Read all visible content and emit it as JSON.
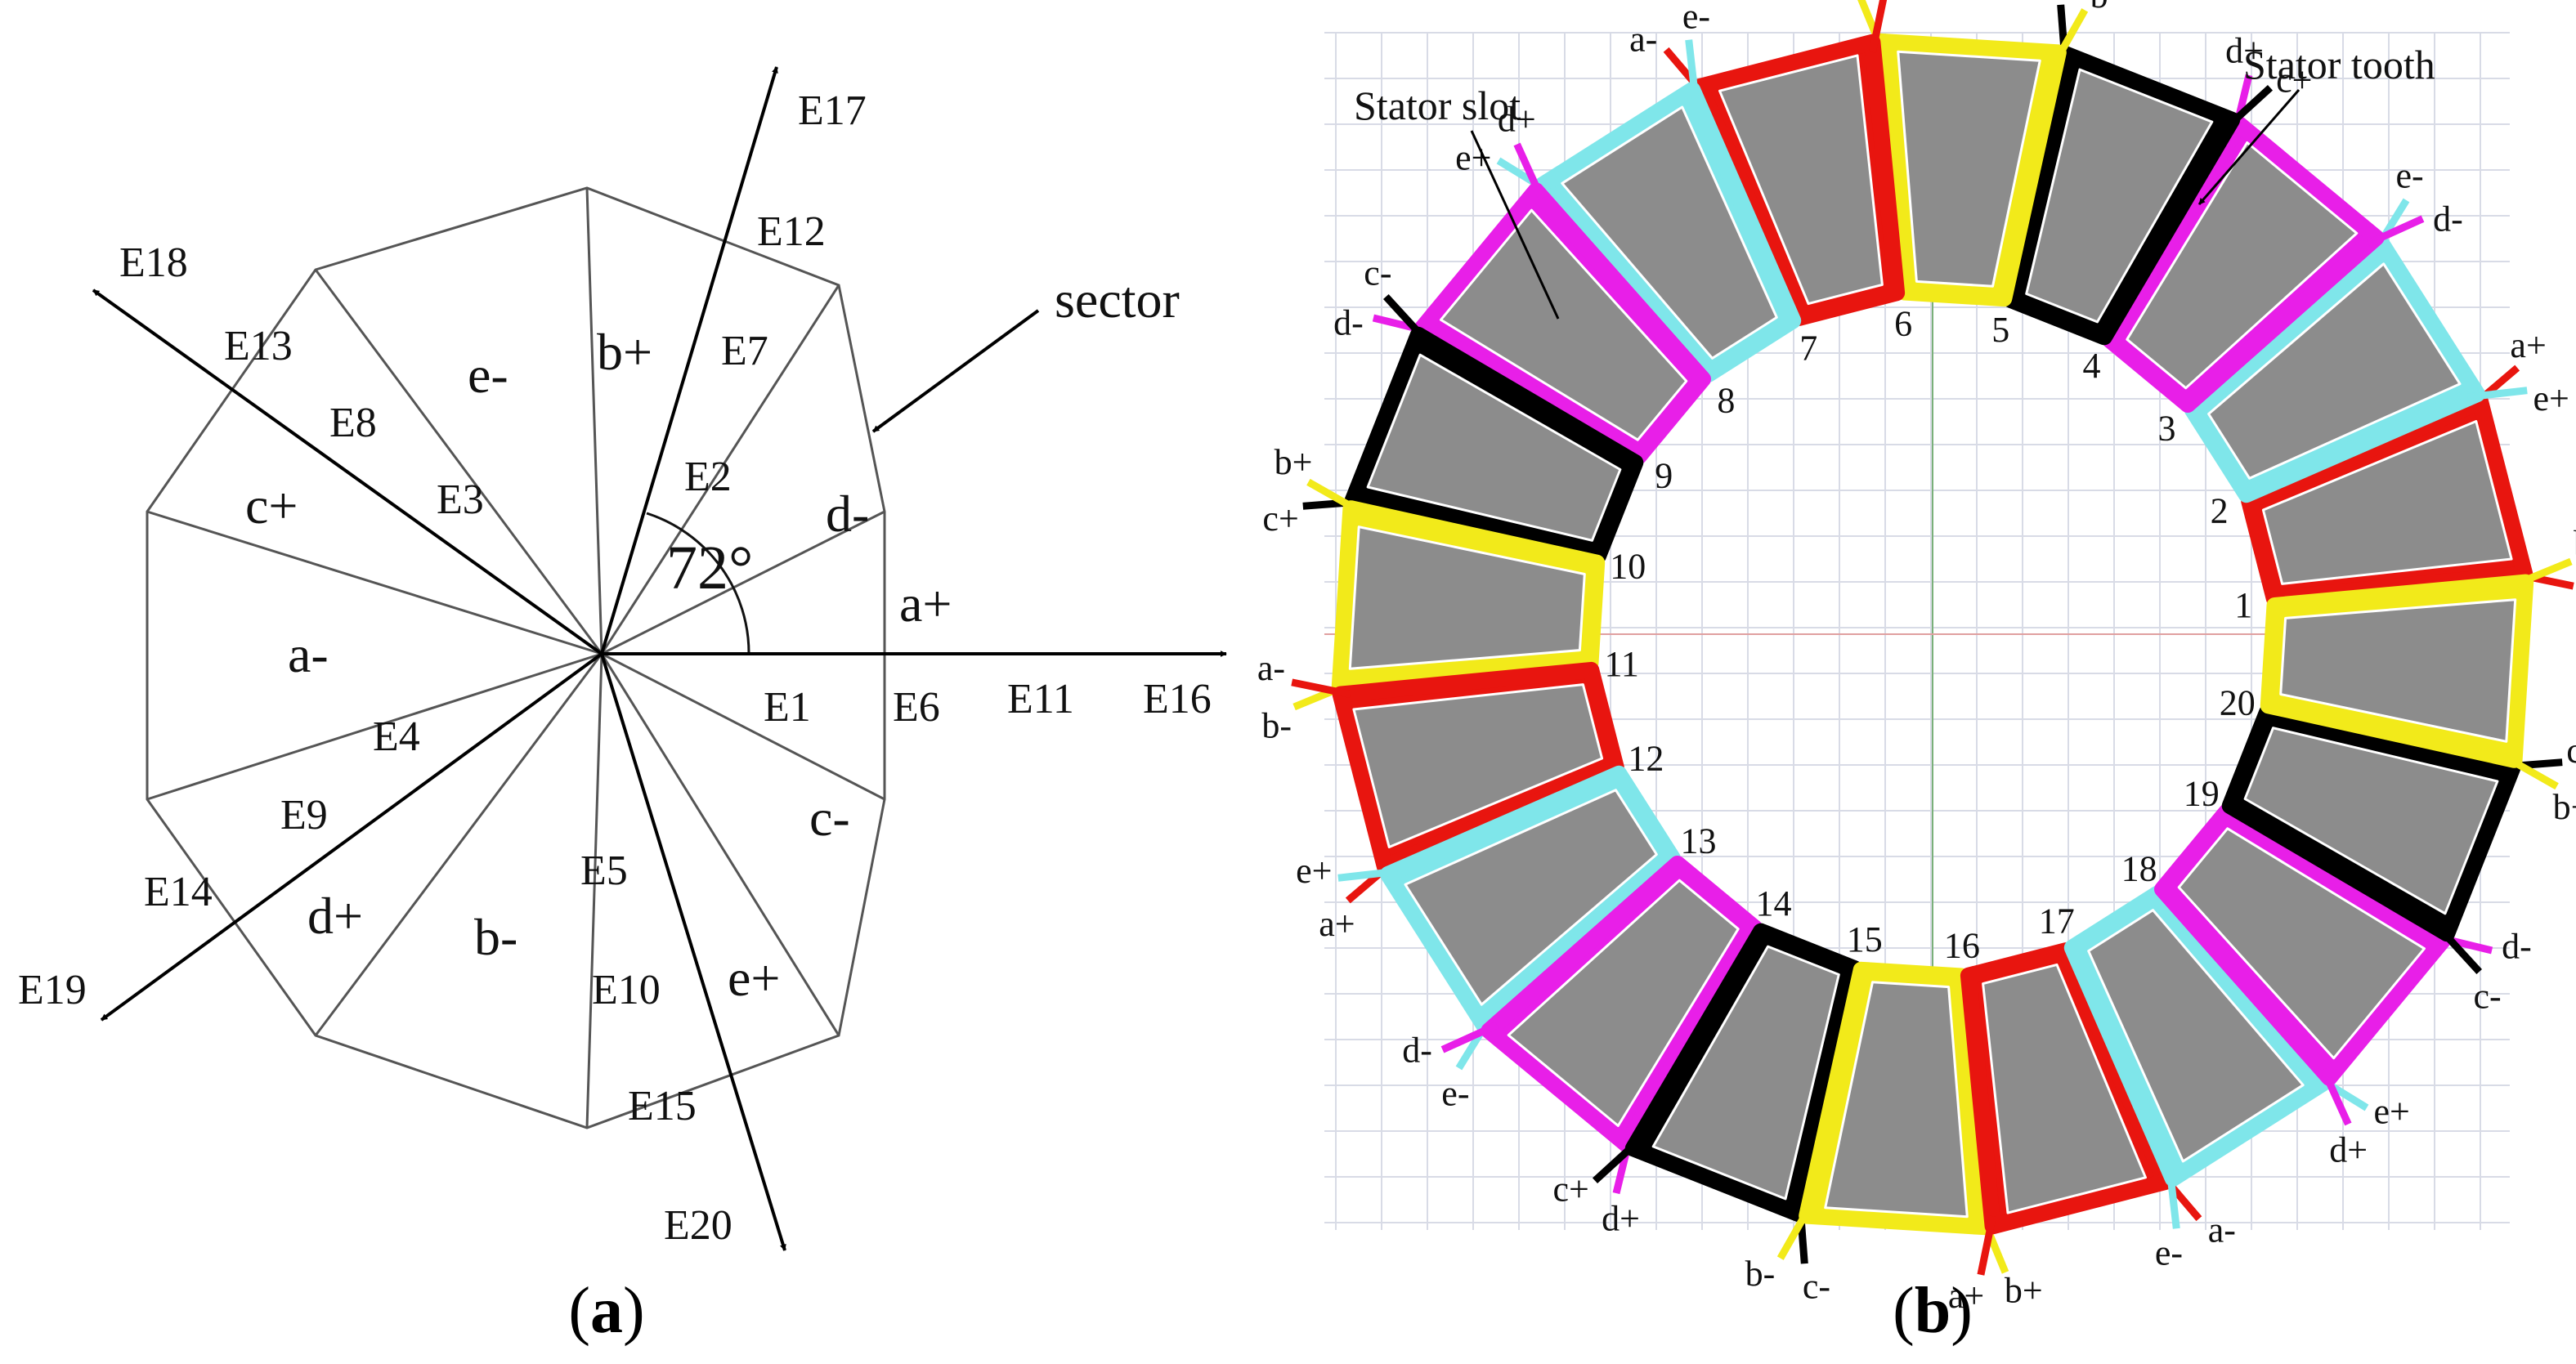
{
  "panel_a": {
    "caption": "a",
    "angle_label": "72°",
    "sector_label": "sector",
    "sector_phases": [
      "a+",
      "b+",
      "c+",
      "d-",
      "e-",
      "a-",
      "b-",
      "c-",
      "d+",
      "e+"
    ],
    "vectors": {
      "E16": [
        "E1",
        "E6",
        "E11",
        "E16"
      ],
      "E17": [
        "E2",
        "E7",
        "E12",
        "E17"
      ],
      "E18": [
        "E3",
        "E8",
        "E13",
        "E18"
      ],
      "E19": [
        "E4",
        "E9",
        "E14",
        "E19"
      ],
      "E20": [
        "E5",
        "E10",
        "E15",
        "E20"
      ]
    }
  },
  "panel_b": {
    "caption": "b",
    "annotations": {
      "stator_slot": "Stator slot",
      "stator_tooth": "Stator tooth"
    },
    "coil_colors": {
      "a": "#e8150f",
      "b": "#f2ea1a",
      "c": "#000000",
      "d": "#e81fe8",
      "e": "#7fe6ea"
    },
    "tooth_fill": "#8c8c8c",
    "slot_numbers": [
      "1",
      "2",
      "3",
      "4",
      "5",
      "6",
      "7",
      "8",
      "9",
      "10",
      "11",
      "12",
      "13",
      "14",
      "15",
      "16",
      "17",
      "18",
      "19",
      "20"
    ],
    "coils": [
      {
        "phase": "a",
        "lead1": "a-",
        "lead2": "a+"
      },
      {
        "phase": "e",
        "lead1": "e+",
        "lead2": "e-"
      },
      {
        "phase": "d",
        "lead1": "d-",
        "lead2": "d+"
      },
      {
        "phase": "c",
        "lead1": "c+",
        "lead2": "c-"
      },
      {
        "phase": "b",
        "lead1": "b-",
        "lead2": "b+"
      },
      {
        "phase": "a",
        "lead1": "a+",
        "lead2": "a-"
      },
      {
        "phase": "e",
        "lead1": "e-",
        "lead2": "e+"
      },
      {
        "phase": "d",
        "lead1": "d+",
        "lead2": "d-"
      },
      {
        "phase": "c",
        "lead1": "c-",
        "lead2": "c+"
      },
      {
        "phase": "b",
        "lead1": "b+",
        "lead2": "b-"
      },
      {
        "phase": "a",
        "lead1": "a-",
        "lead2": "a+"
      },
      {
        "phase": "e",
        "lead1": "e+",
        "lead2": "e-"
      },
      {
        "phase": "d",
        "lead1": "d-",
        "lead2": "d+"
      },
      {
        "phase": "c",
        "lead1": "c+",
        "lead2": "c-"
      },
      {
        "phase": "b",
        "lead1": "b-",
        "lead2": "b+"
      },
      {
        "phase": "a",
        "lead1": "a+",
        "lead2": "a-"
      },
      {
        "phase": "e",
        "lead1": "e-",
        "lead2": "e+"
      },
      {
        "phase": "d",
        "lead1": "d+",
        "lead2": "d-"
      },
      {
        "phase": "c",
        "lead1": "c-",
        "lead2": "c+"
      },
      {
        "phase": "b",
        "lead1": "b+",
        "lead2": "b-"
      }
    ]
  }
}
